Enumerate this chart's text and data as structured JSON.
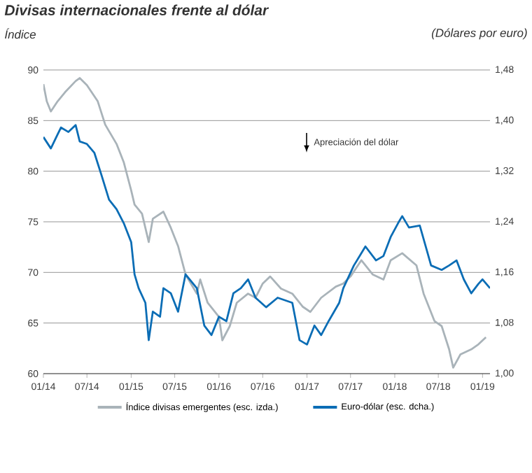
{
  "chart_data": {
    "type": "line",
    "title": "Divisas internacionales frente al dólar",
    "ylabel": "Índice",
    "y2label": "(Dólares por euro)",
    "annotations": [
      "Apreciación del dólar"
    ],
    "xlim": [
      "2014-01-01",
      "2019-02-01"
    ],
    "xticks": [
      {
        "value": "2014-01-01",
        "label": "01/14"
      },
      {
        "value": "2014-07-01",
        "label": "07/14"
      },
      {
        "value": "2015-01-01",
        "label": "01/15"
      },
      {
        "value": "2015-07-01",
        "label": "07/15"
      },
      {
        "value": "2016-01-01",
        "label": "01/16"
      },
      {
        "value": "2016-07-01",
        "label": "07/16"
      },
      {
        "value": "2017-01-01",
        "label": "01/17"
      },
      {
        "value": "2017-07-01",
        "label": "07/17"
      },
      {
        "value": "2018-01-01",
        "label": "01/18"
      },
      {
        "value": "2018-07-01",
        "label": "07/18"
      },
      {
        "value": "2019-01-01",
        "label": "01/19"
      }
    ],
    "ylim": [
      60,
      90
    ],
    "yticks": [
      60,
      65,
      70,
      75,
      80,
      85,
      90
    ],
    "y2lim": [
      1.0,
      1.48
    ],
    "y2ticks": [
      {
        "value": 1.0,
        "label": "1,00"
      },
      {
        "value": 1.08,
        "label": "1,08"
      },
      {
        "value": 1.16,
        "label": "1,16"
      },
      {
        "value": 1.24,
        "label": "1,24"
      },
      {
        "value": 1.32,
        "label": "1,32"
      },
      {
        "value": 1.4,
        "label": "1,40"
      },
      {
        "value": 1.48,
        "label": "1,48"
      }
    ],
    "grid": "y",
    "legend": "bottom",
    "line_style": "solid",
    "series": [
      {
        "name": "Índice divisas emergentes (esc. izda.)",
        "color": "#a9b3b9",
        "axis": "y",
        "x": [
          "2014-01-01",
          "2014-01-15",
          "2014-02-01",
          "2014-03-01",
          "2014-04-01",
          "2014-05-15",
          "2014-06-01",
          "2014-07-01",
          "2014-08-15",
          "2014-09-15",
          "2014-11-01",
          "2014-12-01",
          "2015-01-01",
          "2015-01-15",
          "2015-02-15",
          "2015-03-15",
          "2015-04-01",
          "2015-05-15",
          "2015-06-15",
          "2015-07-15",
          "2015-08-15",
          "2015-10-01",
          "2015-10-15",
          "2015-11-15",
          "2016-01-01",
          "2016-01-15",
          "2016-02-15",
          "2016-03-15",
          "2016-05-01",
          "2016-06-01",
          "2016-07-01",
          "2016-08-01",
          "2016-09-15",
          "2016-11-01",
          "2016-12-15",
          "2017-01-15",
          "2017-03-01",
          "2017-05-01",
          "2017-06-01",
          "2017-07-01",
          "2017-08-15",
          "2017-10-01",
          "2017-11-15",
          "2017-12-15",
          "2018-02-01",
          "2018-04-01",
          "2018-05-01",
          "2018-06-15",
          "2018-07-15",
          "2018-08-15",
          "2018-09-01",
          "2018-10-01",
          "2018-11-15",
          "2018-12-15",
          "2019-01-15"
        ],
        "values": [
          88.6,
          86.9,
          85.9,
          86.9,
          87.8,
          88.9,
          89.2,
          88.5,
          86.9,
          84.6,
          82.7,
          80.9,
          78.1,
          76.7,
          75.8,
          73.0,
          75.3,
          76.0,
          74.4,
          72.6,
          69.8,
          67.9,
          69.3,
          67.0,
          65.6,
          63.3,
          64.7,
          67.0,
          67.9,
          67.5,
          68.9,
          69.6,
          68.4,
          67.9,
          66.6,
          66.1,
          67.5,
          68.6,
          68.9,
          69.6,
          71.2,
          69.8,
          69.3,
          71.2,
          71.9,
          70.7,
          67.9,
          65.2,
          64.7,
          62.4,
          60.6,
          61.9,
          62.4,
          62.9,
          63.6
        ]
      },
      {
        "name": "Euro-dólar (esc. dcha.)",
        "color": "#0b6db5",
        "axis": "y2",
        "x": [
          "2014-01-01",
          "2014-02-01",
          "2014-03-01",
          "2014-03-15",
          "2014-04-15",
          "2014-05-15",
          "2014-06-01",
          "2014-07-01",
          "2014-08-01",
          "2014-09-01",
          "2014-10-01",
          "2014-11-01",
          "2014-12-01",
          "2015-01-01",
          "2015-01-15",
          "2015-02-01",
          "2015-03-01",
          "2015-03-15",
          "2015-04-01",
          "2015-05-01",
          "2015-05-15",
          "2015-06-15",
          "2015-07-15",
          "2015-08-15",
          "2015-10-01",
          "2015-11-01",
          "2015-12-01",
          "2016-01-01",
          "2016-02-01",
          "2016-03-01",
          "2016-04-01",
          "2016-05-01",
          "2016-06-01",
          "2016-07-15",
          "2016-09-01",
          "2016-11-01",
          "2016-12-01",
          "2017-01-01",
          "2017-02-01",
          "2017-03-01",
          "2017-04-01",
          "2017-05-15",
          "2017-06-01",
          "2017-07-15",
          "2017-09-01",
          "2017-10-15",
          "2017-11-15",
          "2017-12-15",
          "2018-01-15",
          "2018-02-01",
          "2018-03-01",
          "2018-04-15",
          "2018-05-15",
          "2018-06-01",
          "2018-07-15",
          "2018-08-15",
          "2018-09-15",
          "2018-10-15",
          "2018-11-15",
          "2018-12-15",
          "2019-01-01",
          "2019-02-01"
        ],
        "values": [
          1.374,
          1.356,
          1.378,
          1.389,
          1.382,
          1.393,
          1.367,
          1.363,
          1.349,
          1.312,
          1.275,
          1.26,
          1.238,
          1.208,
          1.157,
          1.135,
          1.112,
          1.053,
          1.098,
          1.09,
          1.135,
          1.127,
          1.098,
          1.157,
          1.135,
          1.076,
          1.061,
          1.09,
          1.083,
          1.127,
          1.135,
          1.149,
          1.12,
          1.105,
          1.12,
          1.112,
          1.053,
          1.046,
          1.076,
          1.061,
          1.083,
          1.112,
          1.135,
          1.171,
          1.201,
          1.179,
          1.186,
          1.216,
          1.238,
          1.249,
          1.231,
          1.234,
          1.194,
          1.171,
          1.164,
          1.171,
          1.179,
          1.149,
          1.127,
          1.142,
          1.149,
          1.135
        ]
      }
    ]
  }
}
